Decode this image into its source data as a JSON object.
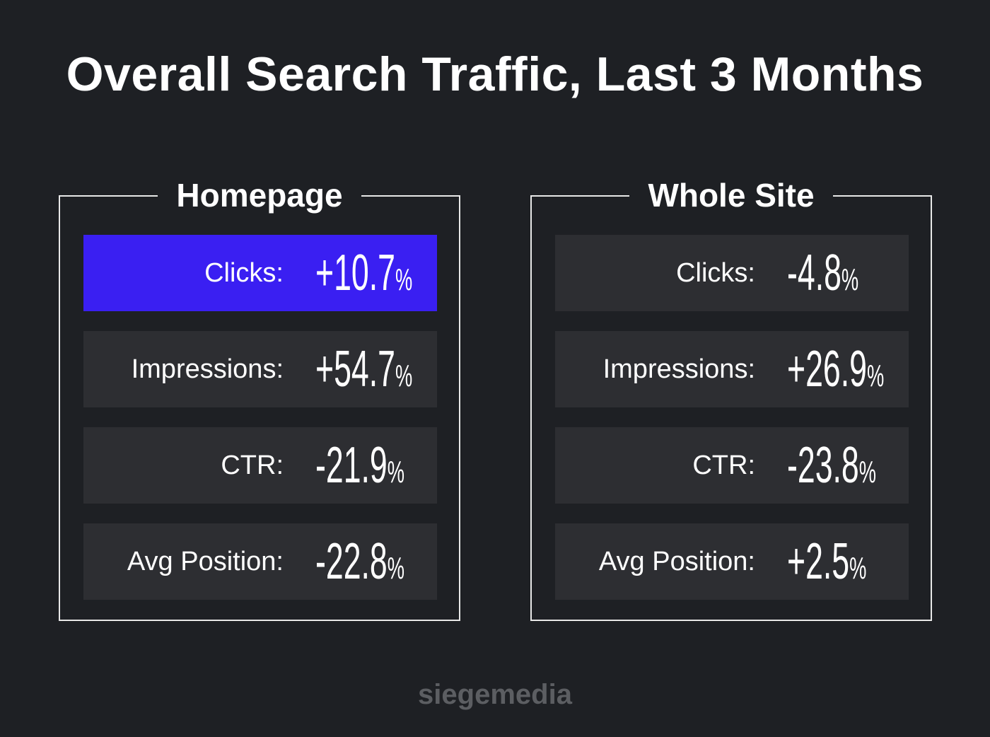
{
  "title": "Overall Search Traffic, Last 3 Months",
  "panels": [
    {
      "title": "Homepage",
      "rows": [
        {
          "label": "Clicks:",
          "value": "+10.7",
          "unit": "%",
          "color": "#3a1ff2"
        },
        {
          "label": "Impressions:",
          "value": "+54.7",
          "unit": "%",
          "color": "#2d2e32"
        },
        {
          "label": "CTR:",
          "value": "-21.9",
          "unit": "%",
          "color": "#2d2e32"
        },
        {
          "label": "Avg Position:",
          "value": "-22.8",
          "unit": "%",
          "color": "#2d2e32"
        }
      ]
    },
    {
      "title": "Whole Site",
      "rows": [
        {
          "label": "Clicks:",
          "value": "-4.8",
          "unit": "%",
          "color": "#2d2e32"
        },
        {
          "label": "Impressions:",
          "value": "+26.9",
          "unit": "%",
          "color": "#2d2e32"
        },
        {
          "label": "CTR:",
          "value": "-23.8",
          "unit": "%",
          "color": "#2d2e32"
        },
        {
          "label": "Avg Position:",
          "value": "+2.5",
          "unit": "%",
          "color": "#2d2e32"
        }
      ]
    }
  ],
  "footer": "siegemedia"
}
